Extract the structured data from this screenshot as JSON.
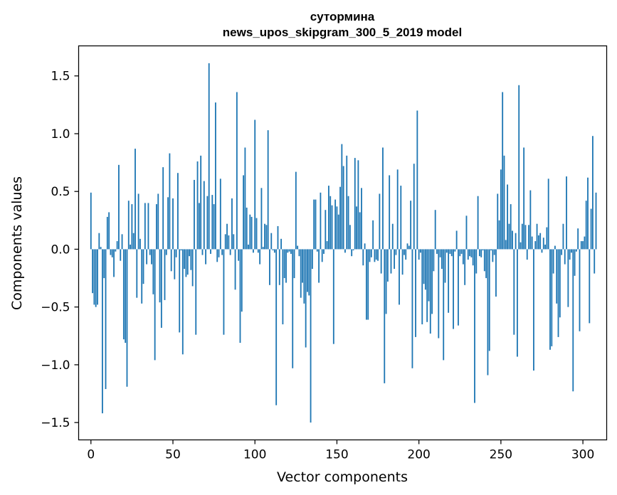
{
  "chart_data": {
    "type": "bar",
    "title": "сутормина",
    "subtitle": "news_upos_skipgram_300_5_2019 model",
    "xlabel": "Vector components",
    "ylabel": "Components values",
    "xlim": [
      -7.5,
      314.5
    ],
    "ylim": [
      -1.65,
      1.76
    ],
    "xticks": [
      0,
      50,
      100,
      150,
      200,
      250,
      300
    ],
    "xtick_labels": [
      "0",
      "50",
      "100",
      "150",
      "200",
      "250",
      "300"
    ],
    "yticks": [
      -1.5,
      -1.0,
      -0.5,
      0.0,
      0.5,
      1.0,
      1.5
    ],
    "ytick_labels": [
      "−1.5",
      "−1.0",
      "−0.5",
      "0.0",
      "0.5",
      "1.0",
      "1.5"
    ],
    "bar_color": "#1f77b4",
    "grid": false,
    "legend": "none",
    "values": [
      0.49,
      -0.38,
      -0.48,
      -0.5,
      -0.48,
      0.14,
      0.02,
      -1.42,
      -0.25,
      -1.21,
      0.28,
      0.32,
      -0.05,
      -0.07,
      -0.24,
      -0.02,
      0.07,
      0.73,
      -0.1,
      0.13,
      -0.78,
      -0.81,
      -1.19,
      0.42,
      0.04,
      0.39,
      0.14,
      0.87,
      -0.42,
      0.48,
      0.09,
      -0.47,
      -0.3,
      0.4,
      -0.13,
      0.4,
      -0.05,
      -0.13,
      -0.39,
      -0.96,
      0.39,
      0.48,
      -0.46,
      -0.68,
      0.71,
      -0.44,
      -0.05,
      0.45,
      0.83,
      -0.19,
      0.44,
      -0.26,
      -0.07,
      0.66,
      -0.72,
      -0.01,
      -0.91,
      -0.17,
      -0.24,
      -0.22,
      -0.06,
      -0.18,
      -0.32,
      0.6,
      -0.74,
      0.76,
      0.4,
      0.81,
      -0.05,
      0.59,
      -0.13,
      0.46,
      1.61,
      -0.04,
      0.47,
      0.39,
      1.27,
      -0.11,
      -0.07,
      0.61,
      -0.05,
      -0.74,
      0.13,
      0.22,
      0.12,
      -0.05,
      0.44,
      0.13,
      -0.35,
      1.36,
      -0.1,
      -0.81,
      -0.54,
      0.64,
      0.88,
      0.36,
      0.04,
      0.3,
      0.28,
      -0.03,
      1.12,
      0.27,
      -0.03,
      -0.13,
      0.53,
      0.02,
      0.22,
      0.21,
      1.03,
      -0.31,
      0.14,
      -0.01,
      -0.03,
      -1.35,
      0.2,
      -0.31,
      0.09,
      -0.65,
      -0.25,
      -0.29,
      -0.03,
      -0.02,
      -0.04,
      -1.03,
      -0.25,
      0.67,
      0.03,
      -0.06,
      -0.42,
      -0.29,
      -0.47,
      -0.85,
      -0.37,
      -0.4,
      -1.5,
      -0.17,
      0.43,
      0.43,
      -0.02,
      -0.29,
      0.49,
      -0.11,
      -0.04,
      0.34,
      0.07,
      0.55,
      0.46,
      0.38,
      -0.82,
      0.43,
      0.37,
      0.3,
      0.54,
      0.91,
      0.72,
      -0.03,
      0.81,
      0.46,
      0.21,
      -0.06,
      -0.01,
      0.79,
      0.37,
      0.77,
      0.32,
      0.53,
      -0.14,
      0.05,
      -0.61,
      -0.61,
      -0.11,
      -0.07,
      0.25,
      -0.11,
      -0.09,
      -0.1,
      0.48,
      -0.21,
      0.88,
      -1.16,
      -0.56,
      -0.28,
      0.64,
      -0.21,
      0.22,
      -0.17,
      -0.05,
      0.69,
      -0.48,
      0.55,
      -0.22,
      -0.05,
      -0.09,
      0.05,
      0.03,
      0.42,
      -1.03,
      0.74,
      -0.76,
      1.2,
      -0.09,
      -0.03,
      -0.65,
      -0.3,
      -0.35,
      -0.63,
      -0.45,
      -0.73,
      -0.56,
      -0.19,
      0.34,
      -0.04,
      -0.77,
      -0.07,
      -0.17,
      -0.96,
      -0.29,
      -0.03,
      -0.55,
      -0.04,
      -0.06,
      -0.69,
      -0.02,
      0.16,
      -0.66,
      -0.06,
      -0.04,
      -0.13,
      -0.31,
      0.29,
      -0.09,
      -0.06,
      -0.07,
      -0.14,
      -1.33,
      -0.21,
      0.46,
      -0.06,
      -0.07,
      -0.01,
      -0.19,
      -0.25,
      -1.09,
      -0.88,
      -0.01,
      -0.11,
      -0.05,
      -0.41,
      0.48,
      0.25,
      0.69,
      1.36,
      0.81,
      0.08,
      0.56,
      0.22,
      0.39,
      0.16,
      -0.74,
      0.14,
      -0.93,
      1.42,
      0.06,
      0.22,
      0.88,
      0.21,
      -0.09,
      0.21,
      0.51,
      0.11,
      -1.05,
      0.07,
      0.22,
      0.12,
      0.14,
      -0.03,
      0.1,
      0.04,
      0.19,
      0.61,
      -0.87,
      -0.84,
      -0.21,
      0.03,
      -0.47,
      -0.76,
      -0.59,
      -0.05,
      0.22,
      -0.13,
      0.63,
      -0.5,
      -0.09,
      -0.03,
      -1.23,
      -0.23,
      -0.02,
      0.18,
      -0.71,
      0.07,
      0.07,
      0.11,
      0.42,
      0.62,
      -0.64,
      0.35,
      0.98,
      -0.21,
      0.49
    ]
  }
}
